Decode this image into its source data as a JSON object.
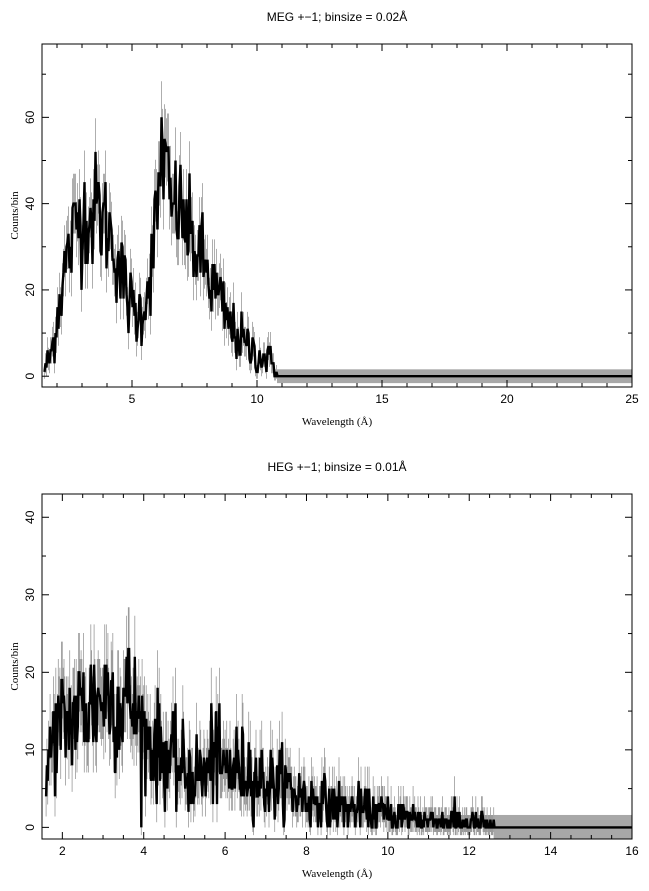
{
  "chart_data": [
    {
      "type": "line",
      "title": "MEG +−1; binsize = 0.02Å",
      "xlabel": "Wavelength (Å)",
      "ylabel": "Counts/bin",
      "xlim": [
        1.4,
        25
      ],
      "ylim": [
        -2.5,
        77
      ],
      "xticks": [
        5,
        10,
        15,
        20,
        25
      ],
      "xtick_labels": [
        "5",
        "10",
        "15",
        "20",
        "25"
      ],
      "yticks": [
        0,
        20,
        40,
        60
      ],
      "ytick_labels": [
        "0",
        "20",
        "40",
        "60"
      ],
      "grid": false,
      "legend": "none",
      "series": [
        {
          "x": [
            1.5,
            1.8,
            2.0,
            2.2,
            2.4,
            2.6,
            2.8,
            3.0,
            3.2,
            3.4,
            3.6,
            3.8,
            4.0,
            4.2,
            4.4,
            4.6,
            4.8,
            5.0,
            5.2,
            5.4,
            5.6,
            5.8,
            6.0,
            6.1,
            6.2,
            6.3,
            6.4,
            6.6,
            6.8,
            7.0,
            7.2,
            7.4,
            7.6,
            7.8,
            8.0,
            8.2,
            8.4,
            8.6,
            8.8,
            9.0,
            9.2,
            9.4,
            9.6,
            9.8,
            10.0,
            10.5,
            11.0,
            11.5,
            12.0,
            12.5,
            13.0,
            14.0,
            15.0,
            16.0,
            18.0,
            20.0,
            22.0,
            25.0
          ],
          "y": [
            1,
            6,
            14,
            22,
            27,
            31,
            36,
            37,
            38,
            36,
            40,
            36,
            35,
            32,
            28,
            23,
            19,
            16,
            14,
            15,
            20,
            27,
            37,
            45,
            55,
            50,
            45,
            38,
            40,
            37,
            34,
            31,
            29,
            27,
            24,
            21,
            19,
            16,
            13,
            11,
            10,
            8,
            7,
            6,
            5,
            3.5,
            2.5,
            1.5,
            1,
            0.5,
            0.3,
            0.2,
            0.1,
            0.1,
            0,
            0,
            0,
            0
          ]
        }
      ]
    },
    {
      "type": "line",
      "title": "HEG +−1; binsize = 0.01Å",
      "xlabel": "Wavelength (Å)",
      "ylabel": "Counts/bin",
      "xlim": [
        1.5,
        16
      ],
      "ylim": [
        -1.5,
        43
      ],
      "xticks": [
        2,
        4,
        6,
        8,
        10,
        12,
        14,
        16
      ],
      "xtick_labels": [
        "2",
        "4",
        "6",
        "8",
        "10",
        "12",
        "14",
        "16"
      ],
      "yticks": [
        0,
        10,
        20,
        30,
        40
      ],
      "ytick_labels": [
        "0",
        "10",
        "20",
        "30",
        "40"
      ],
      "grid": false,
      "legend": "none",
      "series": [
        {
          "x": [
            1.55,
            1.65,
            1.8,
            2.0,
            2.2,
            2.4,
            2.6,
            2.8,
            3.0,
            3.2,
            3.4,
            3.6,
            3.8,
            4.0,
            4.2,
            4.4,
            4.6,
            4.8,
            5.0,
            5.2,
            5.4,
            5.6,
            5.75,
            5.8,
            6.0,
            6.2,
            6.4,
            6.6,
            6.8,
            7.0,
            7.5,
            8.0,
            8.5,
            9.0,
            9.5,
            10.0,
            10.5,
            11.0,
            11.5,
            12.0,
            12.5,
            13.0,
            14.0,
            15.0,
            16.0
          ],
          "y": [
            1,
            8,
            12,
            13,
            14,
            15,
            16,
            16,
            17,
            17,
            16,
            17,
            15,
            12,
            11,
            10,
            9,
            8,
            7,
            7,
            7,
            7,
            12,
            8,
            7,
            8,
            7,
            8,
            6,
            6,
            5,
            4,
            3,
            2.5,
            2,
            1.5,
            1.2,
            1,
            0.8,
            0.6,
            0.4,
            0.3,
            0.2,
            0.1,
            0.1
          ]
        }
      ]
    }
  ]
}
